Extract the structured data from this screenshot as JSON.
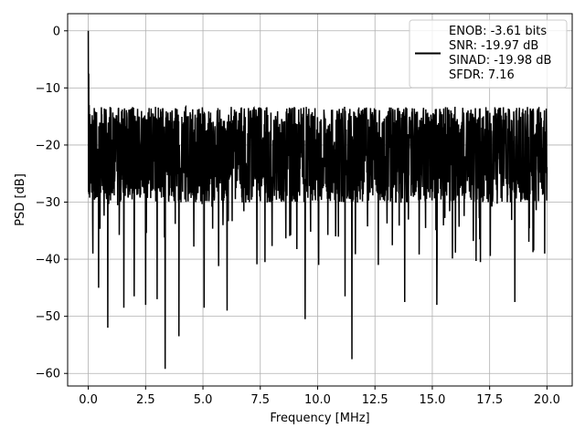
{
  "chart_data": {
    "type": "line",
    "title": "",
    "xlabel": "Frequency [MHz]",
    "ylabel": "PSD [dB]",
    "xlim": [
      -0.9,
      21.1
    ],
    "ylim": [
      -62.2,
      3.0
    ],
    "xticks": [
      0.0,
      2.5,
      5.0,
      7.5,
      10.0,
      12.5,
      15.0,
      17.5,
      20.0
    ],
    "xtick_labels": [
      "0.0",
      "2.5",
      "5.0",
      "7.5",
      "10.0",
      "12.5",
      "15.0",
      "17.5",
      "20.0"
    ],
    "yticks": [
      0,
      -10,
      -20,
      -30,
      -40,
      -50,
      -60
    ],
    "ytick_labels": [
      "0",
      "−10",
      "−20",
      "−30",
      "−40",
      "−50",
      "−60"
    ],
    "grid": true,
    "legend_position": "top-right",
    "series": [
      {
        "name": "ENOB: -3.61 bits\nSNR: -19.97 dB\nSINAD: -19.98 dB\nSFDR: 7.16",
        "legend_lines": [
          "ENOB: -3.61 bits",
          "SNR: -19.97 dB",
          "SINAD: -19.98 dB",
          "SFDR: 7.16"
        ],
        "color": "#000000",
        "x_range": [
          0.0,
          20.0
        ],
        "points": 2000,
        "noise_level": -21.0,
        "noise_spread": 7.0,
        "peaks": [
          {
            "x": 0.0,
            "y": 0.0
          },
          {
            "x": 0.02,
            "y": -7.5
          },
          {
            "x": 0.04,
            "y": -13.0
          }
        ],
        "dips": [
          {
            "x": 0.05,
            "y": -24.0
          },
          {
            "x": 0.2,
            "y": -39.0
          },
          {
            "x": 0.45,
            "y": -45.0
          },
          {
            "x": 0.85,
            "y": -52.0
          },
          {
            "x": 1.55,
            "y": -48.5
          },
          {
            "x": 2.0,
            "y": -46.5
          },
          {
            "x": 2.5,
            "y": -48.0
          },
          {
            "x": 3.0,
            "y": -47.0
          },
          {
            "x": 3.35,
            "y": -59.2
          },
          {
            "x": 3.95,
            "y": -53.5
          },
          {
            "x": 5.05,
            "y": -48.5
          },
          {
            "x": 6.05,
            "y": -49.0
          },
          {
            "x": 7.7,
            "y": -40.5
          },
          {
            "x": 9.45,
            "y": -50.5
          },
          {
            "x": 10.05,
            "y": -41.0
          },
          {
            "x": 11.2,
            "y": -46.5
          },
          {
            "x": 11.5,
            "y": -57.5
          },
          {
            "x": 12.65,
            "y": -41.0
          },
          {
            "x": 13.8,
            "y": -47.5
          },
          {
            "x": 15.2,
            "y": -48.0
          },
          {
            "x": 17.1,
            "y": -40.5
          },
          {
            "x": 18.6,
            "y": -47.5
          },
          {
            "x": 19.9,
            "y": -39.0
          }
        ]
      }
    ]
  }
}
